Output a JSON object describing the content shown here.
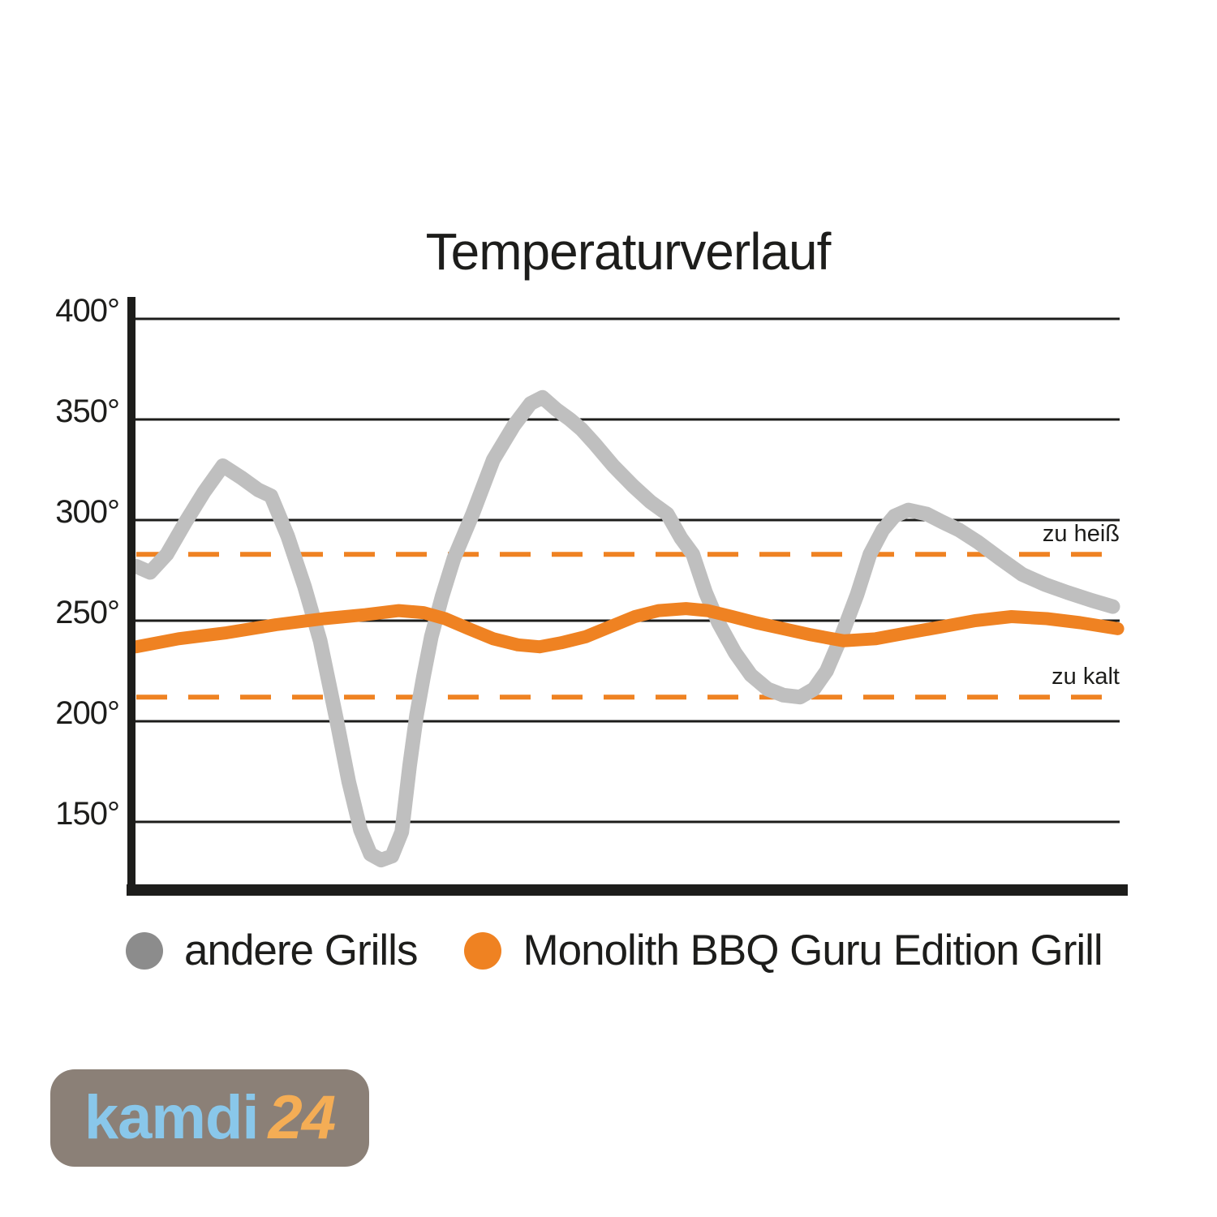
{
  "title": "Temperaturverlauf",
  "legend": [
    {
      "name": "andere Grills",
      "color": "#8c8c8c"
    },
    {
      "name": "Monolith BBQ Guru Edition Grill",
      "color": "#ef8222"
    }
  ],
  "logo": {
    "text_primary": "kamdi",
    "text_secondary": "24",
    "bg": "#8b8077",
    "primary_color": "#89c7ea",
    "secondary_color": "#f4ad55"
  },
  "chart_data": {
    "type": "line",
    "title": "Temperaturverlauf",
    "y_unit": "°",
    "yticks": [
      400,
      350,
      300,
      250,
      200,
      150
    ],
    "ylim": [
      113,
      410
    ],
    "xlim": [
      0,
      100
    ],
    "grid": true,
    "legend_position": "bottom",
    "axis_color": "#1d1d1b",
    "gridline_color": "#1d1d1b",
    "thresholds": [
      {
        "label": "zu heiß",
        "value": 283,
        "color": "#ef8222"
      },
      {
        "label": "zu kalt",
        "value": 212,
        "color": "#ef8222"
      }
    ],
    "series": [
      {
        "name": "andere Grills",
        "color": "#bfbfbf",
        "width": 18,
        "points": [
          [
            0,
            277
          ],
          [
            1.4,
            274
          ],
          [
            3.1,
            283
          ],
          [
            5.0,
            299
          ],
          [
            6.9,
            314
          ],
          [
            8.8,
            327
          ],
          [
            10.7,
            321
          ],
          [
            12.4,
            315
          ],
          [
            13.7,
            312
          ],
          [
            15.4,
            292
          ],
          [
            17.1,
            267
          ],
          [
            18.7,
            240
          ],
          [
            20.4,
            200
          ],
          [
            21.6,
            170
          ],
          [
            22.8,
            146
          ],
          [
            23.8,
            134
          ],
          [
            24.9,
            131
          ],
          [
            26.0,
            133
          ],
          [
            27.0,
            145
          ],
          [
            27.8,
            178
          ],
          [
            28.5,
            203
          ],
          [
            29.2,
            222
          ],
          [
            30.0,
            242
          ],
          [
            31.1,
            262
          ],
          [
            32.3,
            281
          ],
          [
            34.2,
            303
          ],
          [
            36.3,
            330
          ],
          [
            38.4,
            347
          ],
          [
            40.1,
            358
          ],
          [
            41.3,
            361
          ],
          [
            42.7,
            355
          ],
          [
            44.1,
            350
          ],
          [
            45.3,
            345
          ],
          [
            46.6,
            338
          ],
          [
            48.5,
            327
          ],
          [
            50.5,
            317
          ],
          [
            52.3,
            309
          ],
          [
            54.0,
            303
          ],
          [
            55.4,
            291
          ],
          [
            56.6,
            283
          ],
          [
            57.9,
            264
          ],
          [
            59.2,
            249
          ],
          [
            60.9,
            234
          ],
          [
            62.5,
            223
          ],
          [
            64.2,
            216
          ],
          [
            65.8,
            213
          ],
          [
            67.5,
            212
          ],
          [
            68.9,
            216
          ],
          [
            70.2,
            225
          ],
          [
            71.6,
            241
          ],
          [
            73.3,
            263
          ],
          [
            74.6,
            283
          ],
          [
            75.9,
            295
          ],
          [
            77.1,
            302
          ],
          [
            78.5,
            305
          ],
          [
            80.4,
            303
          ],
          [
            82.0,
            299
          ],
          [
            83.7,
            295
          ],
          [
            85.6,
            289
          ],
          [
            87.8,
            281
          ],
          [
            90.1,
            273
          ],
          [
            92.4,
            268
          ],
          [
            94.7,
            264
          ],
          [
            97.2,
            260
          ],
          [
            99.3,
            257
          ]
        ]
      },
      {
        "name": "Monolith BBQ Guru Edition Grill",
        "color": "#ef8222",
        "width": 16,
        "points": [
          [
            0,
            237
          ],
          [
            4.3,
            241
          ],
          [
            9.2,
            244
          ],
          [
            14.2,
            248
          ],
          [
            19.1,
            251
          ],
          [
            23.3,
            253
          ],
          [
            26.7,
            255
          ],
          [
            29.2,
            254
          ],
          [
            31.4,
            251
          ],
          [
            33.8,
            246
          ],
          [
            36.3,
            241
          ],
          [
            38.8,
            238
          ],
          [
            41.0,
            237
          ],
          [
            43.2,
            239
          ],
          [
            45.7,
            242
          ],
          [
            48.2,
            247
          ],
          [
            50.7,
            252
          ],
          [
            53.1,
            255
          ],
          [
            55.9,
            256
          ],
          [
            58.1,
            255
          ],
          [
            60.6,
            252
          ],
          [
            63.0,
            249
          ],
          [
            65.8,
            246
          ],
          [
            68.6,
            243
          ],
          [
            71.9,
            240
          ],
          [
            75.2,
            241
          ],
          [
            78.5,
            244
          ],
          [
            82.0,
            247
          ],
          [
            85.3,
            250
          ],
          [
            89.0,
            252
          ],
          [
            92.6,
            251
          ],
          [
            96.0,
            249
          ],
          [
            99.8,
            246
          ]
        ]
      }
    ]
  }
}
